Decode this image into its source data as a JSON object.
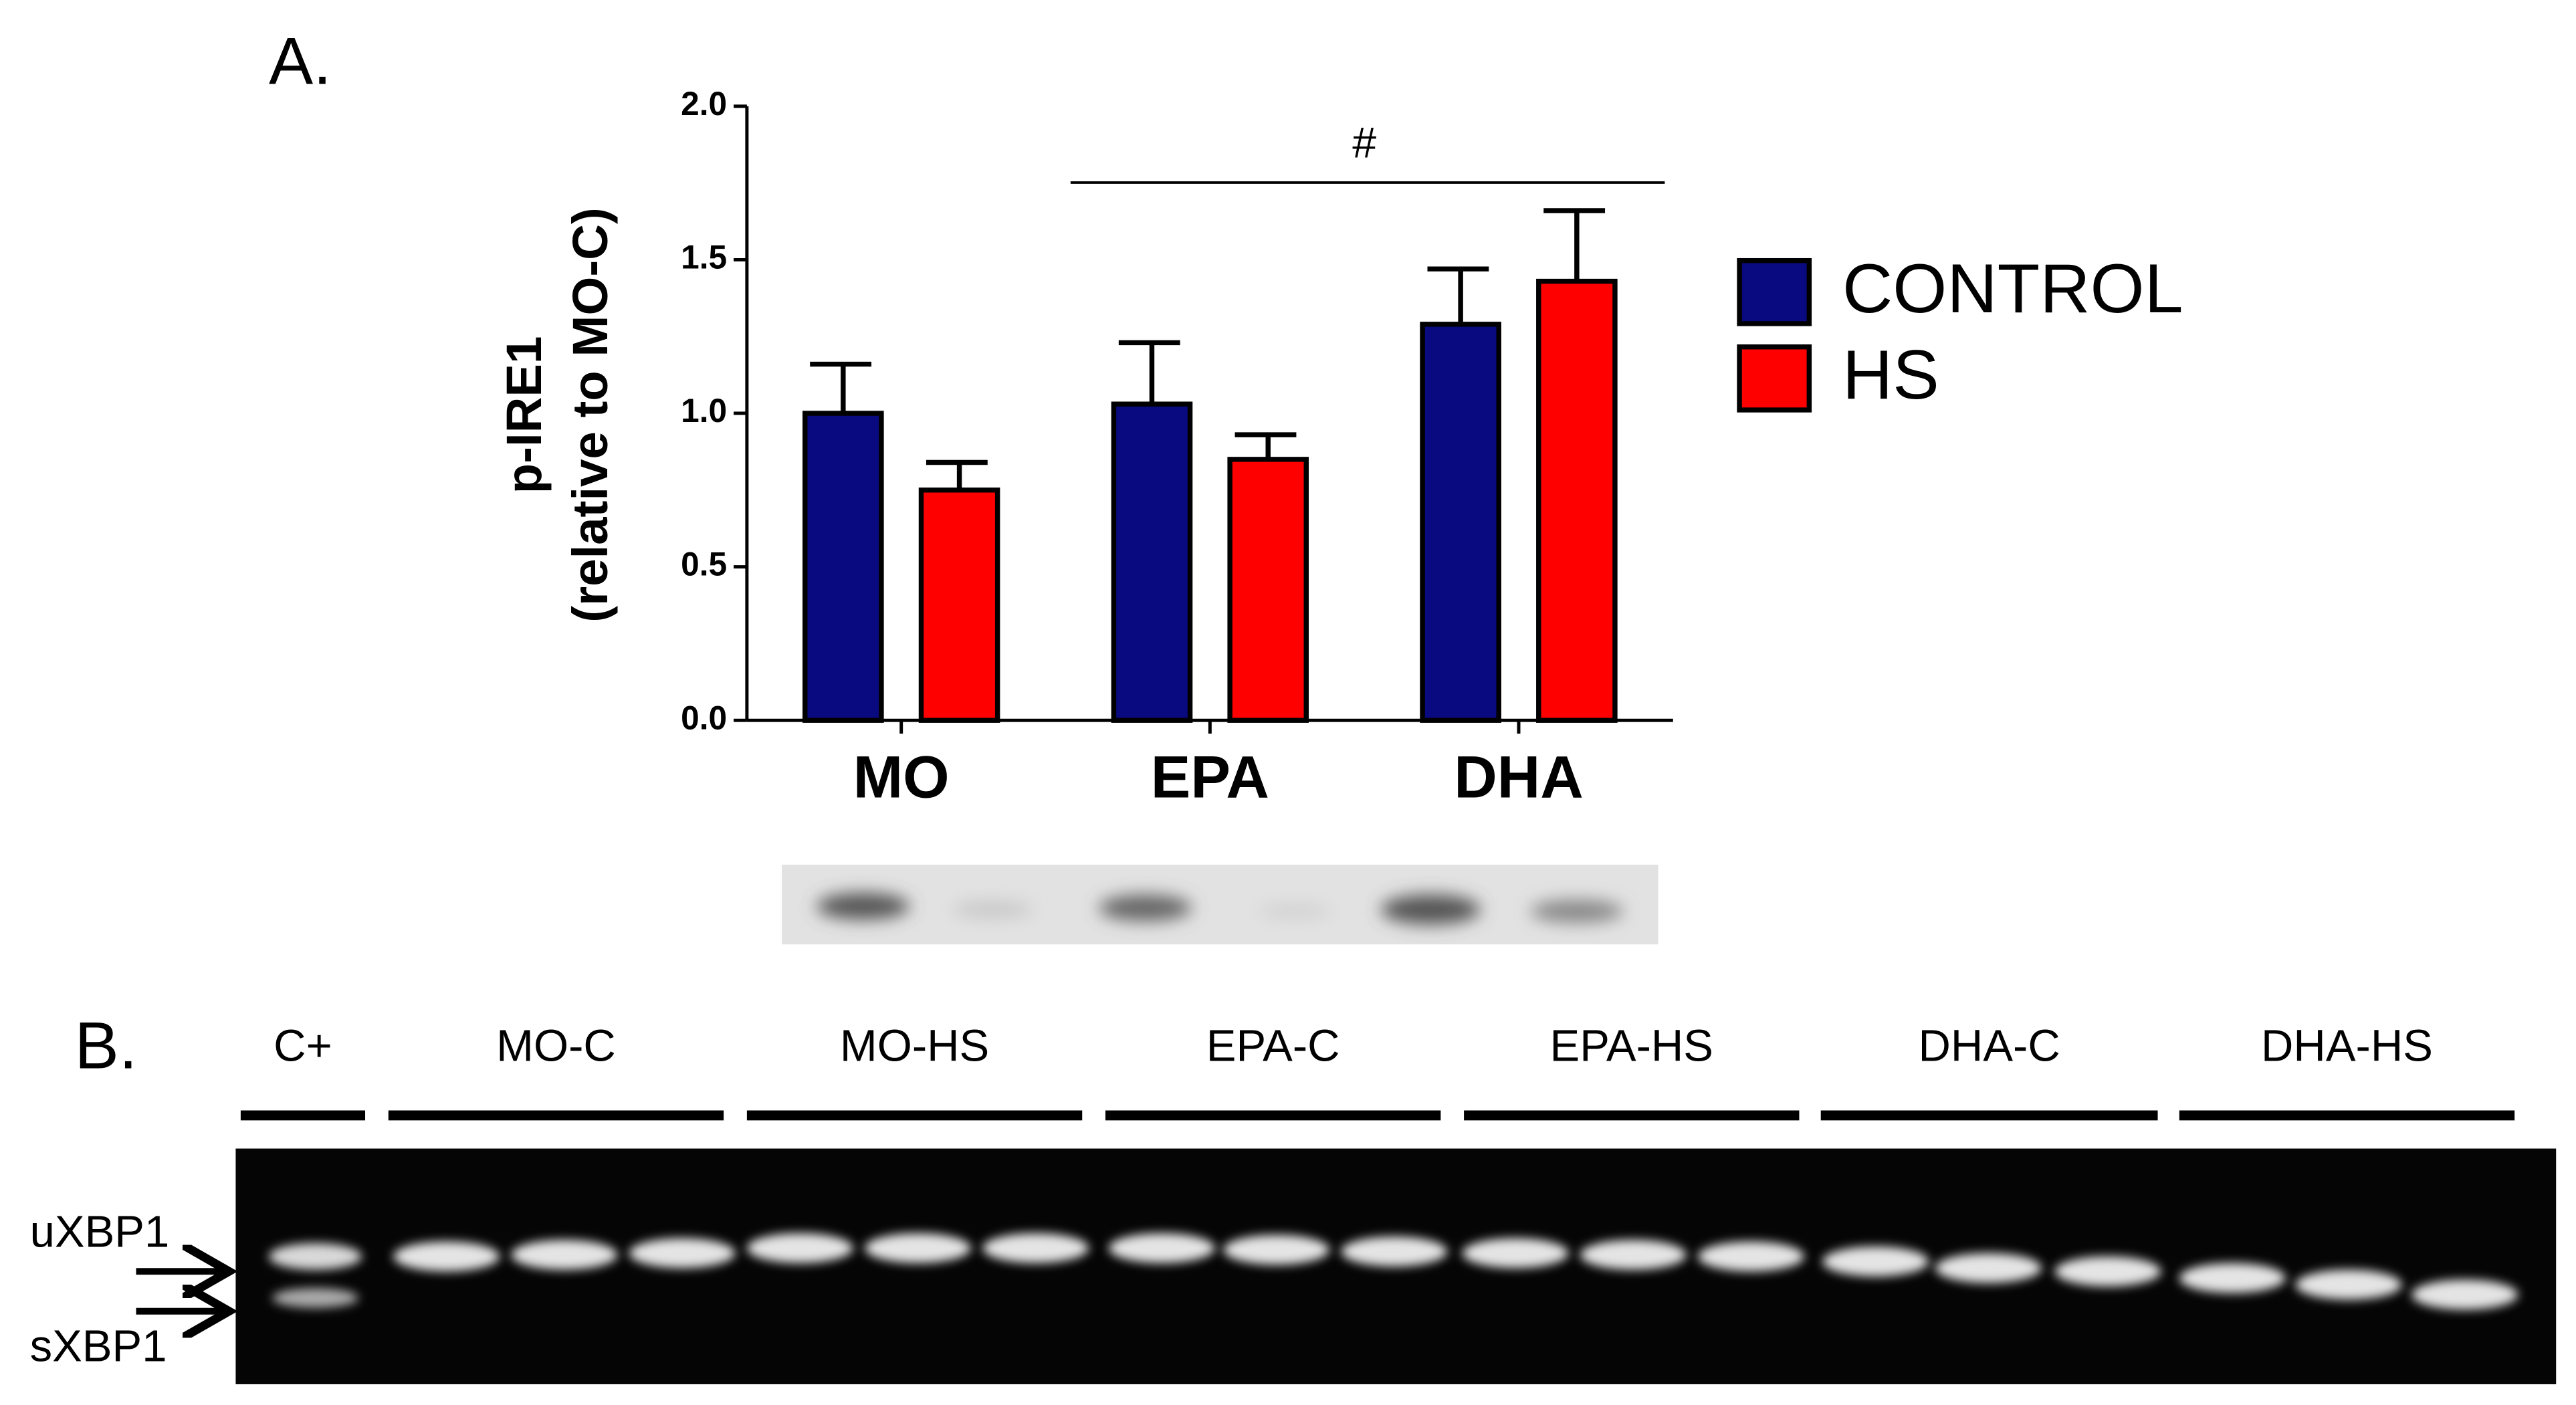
{
  "panel_labels": [
    "A.",
    "B."
  ],
  "chart_data": {
    "type": "bar",
    "ylabel": [
      "p-IRE1",
      "(relative to MO-C)"
    ],
    "categories": [
      "MO",
      "EPA",
      "DHA"
    ],
    "series": [
      {
        "name": "CONTROL",
        "color": "#0a0a80",
        "values": [
          1.0,
          1.03,
          1.29
        ],
        "errors": [
          0.16,
          0.2,
          0.18
        ]
      },
      {
        "name": "HS",
        "color": "#ff0000",
        "values": [
          0.75,
          0.85,
          1.43
        ],
        "errors": [
          0.09,
          0.08,
          0.23
        ]
      }
    ],
    "ylim": [
      0,
      2
    ],
    "yticks": [
      {
        "value": 0,
        "label": "0.0"
      },
      0.5,
      {
        "value": 1,
        "label": "1.0"
      },
      1.5,
      {
        "value": 2,
        "label": "2.0"
      }
    ],
    "annotations": [
      {
        "text": "#"
      }
    ],
    "legend": "right"
  },
  "gel": {
    "lane_groups": [
      "C+",
      "MO-C",
      "MO-HS",
      "EPA-C",
      "EPA-HS",
      "DHA-C",
      "DHA-HS"
    ],
    "band_labels": [
      "uXBP1",
      "sXBP1"
    ]
  }
}
